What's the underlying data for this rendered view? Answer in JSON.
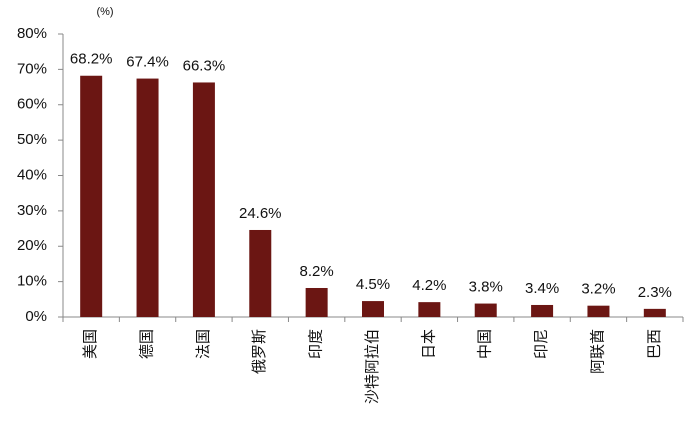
{
  "chart_data": {
    "type": "bar",
    "y_label": "(%)",
    "categories": [
      "美国",
      "德国",
      "法国",
      "俄罗斯",
      "印度",
      "沙特阿拉伯",
      "日本",
      "中国",
      "印尼",
      "阿联酋",
      "巴西"
    ],
    "values": [
      68.2,
      67.4,
      66.3,
      24.6,
      8.2,
      4.5,
      4.2,
      3.8,
      3.4,
      3.2,
      2.3
    ],
    "value_labels": [
      "68.2%",
      "67.4%",
      "66.3%",
      "24.6%",
      "8.2%",
      "4.5%",
      "4.2%",
      "3.8%",
      "3.4%",
      "3.2%",
      "2.3%"
    ],
    "color": "#6b1613",
    "ylim": [
      0,
      80
    ],
    "yticks": [
      {
        "value": 0,
        "label": "0%"
      },
      {
        "value": 10,
        "label": "10%"
      },
      {
        "value": 20,
        "label": "20%"
      },
      {
        "value": 30,
        "label": "30%"
      },
      {
        "value": 40,
        "label": "40%"
      },
      {
        "value": 50,
        "label": "50%"
      },
      {
        "value": 60,
        "label": "60%"
      },
      {
        "value": 70,
        "label": "70%"
      },
      {
        "value": 80,
        "label": "80%"
      }
    ],
    "grid": false
  }
}
